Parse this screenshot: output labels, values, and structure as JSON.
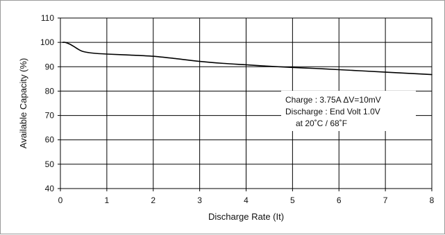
{
  "chart_data": {
    "type": "line",
    "xlabel": "Discharge Rate (It)",
    "ylabel": "Available Capacity (%)",
    "xlim": [
      0,
      8
    ],
    "ylim": [
      40,
      110
    ],
    "x_ticks": [
      0,
      1,
      2,
      3,
      4,
      5,
      6,
      7,
      8
    ],
    "y_ticks": [
      40,
      50,
      60,
      70,
      80,
      90,
      100,
      110
    ],
    "grid": true,
    "series": [
      {
        "color": "#000000",
        "points": [
          {
            "x": 0.05,
            "y": 100.0
          },
          {
            "x": 0.1,
            "y": 100.0
          },
          {
            "x": 0.2,
            "y": 99.3
          },
          {
            "x": 0.3,
            "y": 98.2
          },
          {
            "x": 0.4,
            "y": 97.0
          },
          {
            "x": 0.5,
            "y": 96.2
          },
          {
            "x": 0.7,
            "y": 95.6
          },
          {
            "x": 1.0,
            "y": 95.2
          },
          {
            "x": 1.5,
            "y": 94.8
          },
          {
            "x": 2.0,
            "y": 94.3
          },
          {
            "x": 2.5,
            "y": 93.3
          },
          {
            "x": 3.0,
            "y": 92.2
          },
          {
            "x": 3.5,
            "y": 91.4
          },
          {
            "x": 4.0,
            "y": 90.8
          },
          {
            "x": 4.5,
            "y": 90.2
          },
          {
            "x": 5.0,
            "y": 89.7
          },
          {
            "x": 5.5,
            "y": 89.3
          },
          {
            "x": 6.0,
            "y": 88.8
          },
          {
            "x": 6.5,
            "y": 88.3
          },
          {
            "x": 7.0,
            "y": 87.8
          },
          {
            "x": 7.5,
            "y": 87.3
          },
          {
            "x": 8.0,
            "y": 86.8
          }
        ]
      }
    ],
    "annotations": [
      "Charge : 3.75A  ΔV=10mV",
      "Discharge : End Volt 1.0V",
      "at 20˚C / 68˚F"
    ]
  }
}
